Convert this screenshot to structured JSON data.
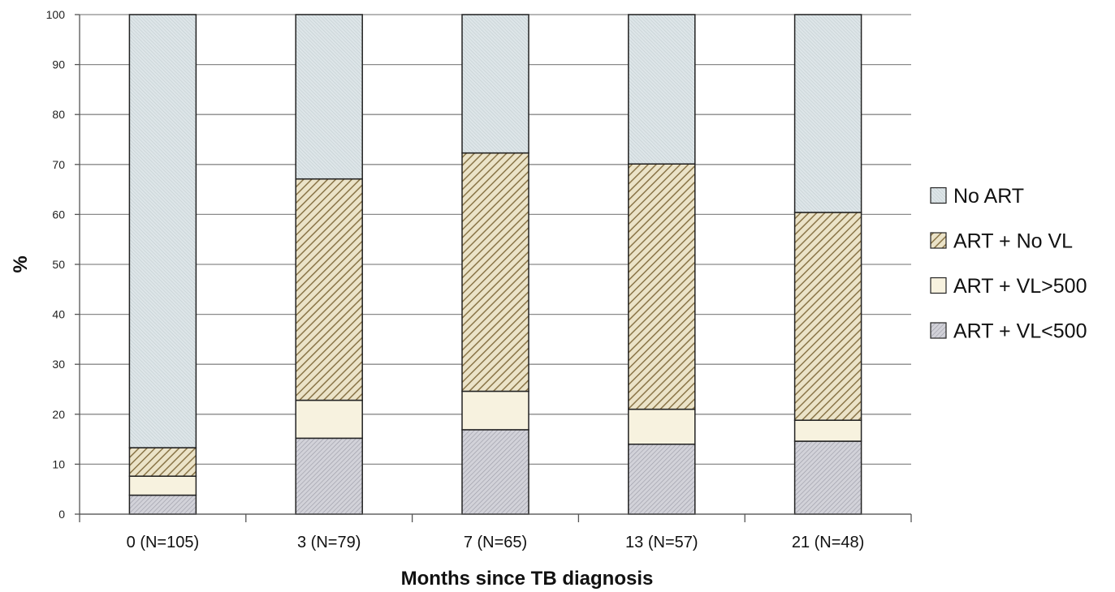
{
  "chart_data": {
    "type": "bar",
    "stacked": true,
    "categories": [
      "0 (N=105)",
      "3 (N=79)",
      "7 (N=65)",
      "13 (N=57)",
      "21 (N=48)"
    ],
    "series": [
      {
        "name": "ART + VL<500",
        "values": [
          3.8,
          15.2,
          16.9,
          14.0,
          14.6
        ],
        "fill": "#cfcfd6",
        "pattern": "dense-hatch"
      },
      {
        "name": "ART + VL>500",
        "values": [
          3.8,
          7.6,
          7.7,
          7.0,
          4.2
        ],
        "fill": "#f7f2df",
        "pattern": "none"
      },
      {
        "name": "ART + No VL",
        "values": [
          5.7,
          44.3,
          47.7,
          49.1,
          41.6
        ],
        "fill": "#e6dcbf",
        "stripe": "#8a7548",
        "pattern": "diagonal-stripes"
      },
      {
        "name": "No ART",
        "values": [
          86.7,
          32.9,
          27.7,
          29.9,
          39.6
        ],
        "fill": "#d8e1e4",
        "pattern": "fine-hatch"
      }
    ],
    "legend_order": [
      "No ART",
      "ART + No VL",
      "ART + VL>500",
      "ART + VL<500"
    ],
    "legend_position": "right",
    "xlabel": "Months since TB diagnosis",
    "ylabel": "%",
    "ylim": [
      0,
      100
    ],
    "yticks": [
      0,
      10,
      20,
      30,
      40,
      50,
      60,
      70,
      80,
      90,
      100
    ],
    "grid": true,
    "colors": {
      "gridline": "#8a8a8a",
      "bar_outline": "#222222"
    }
  }
}
